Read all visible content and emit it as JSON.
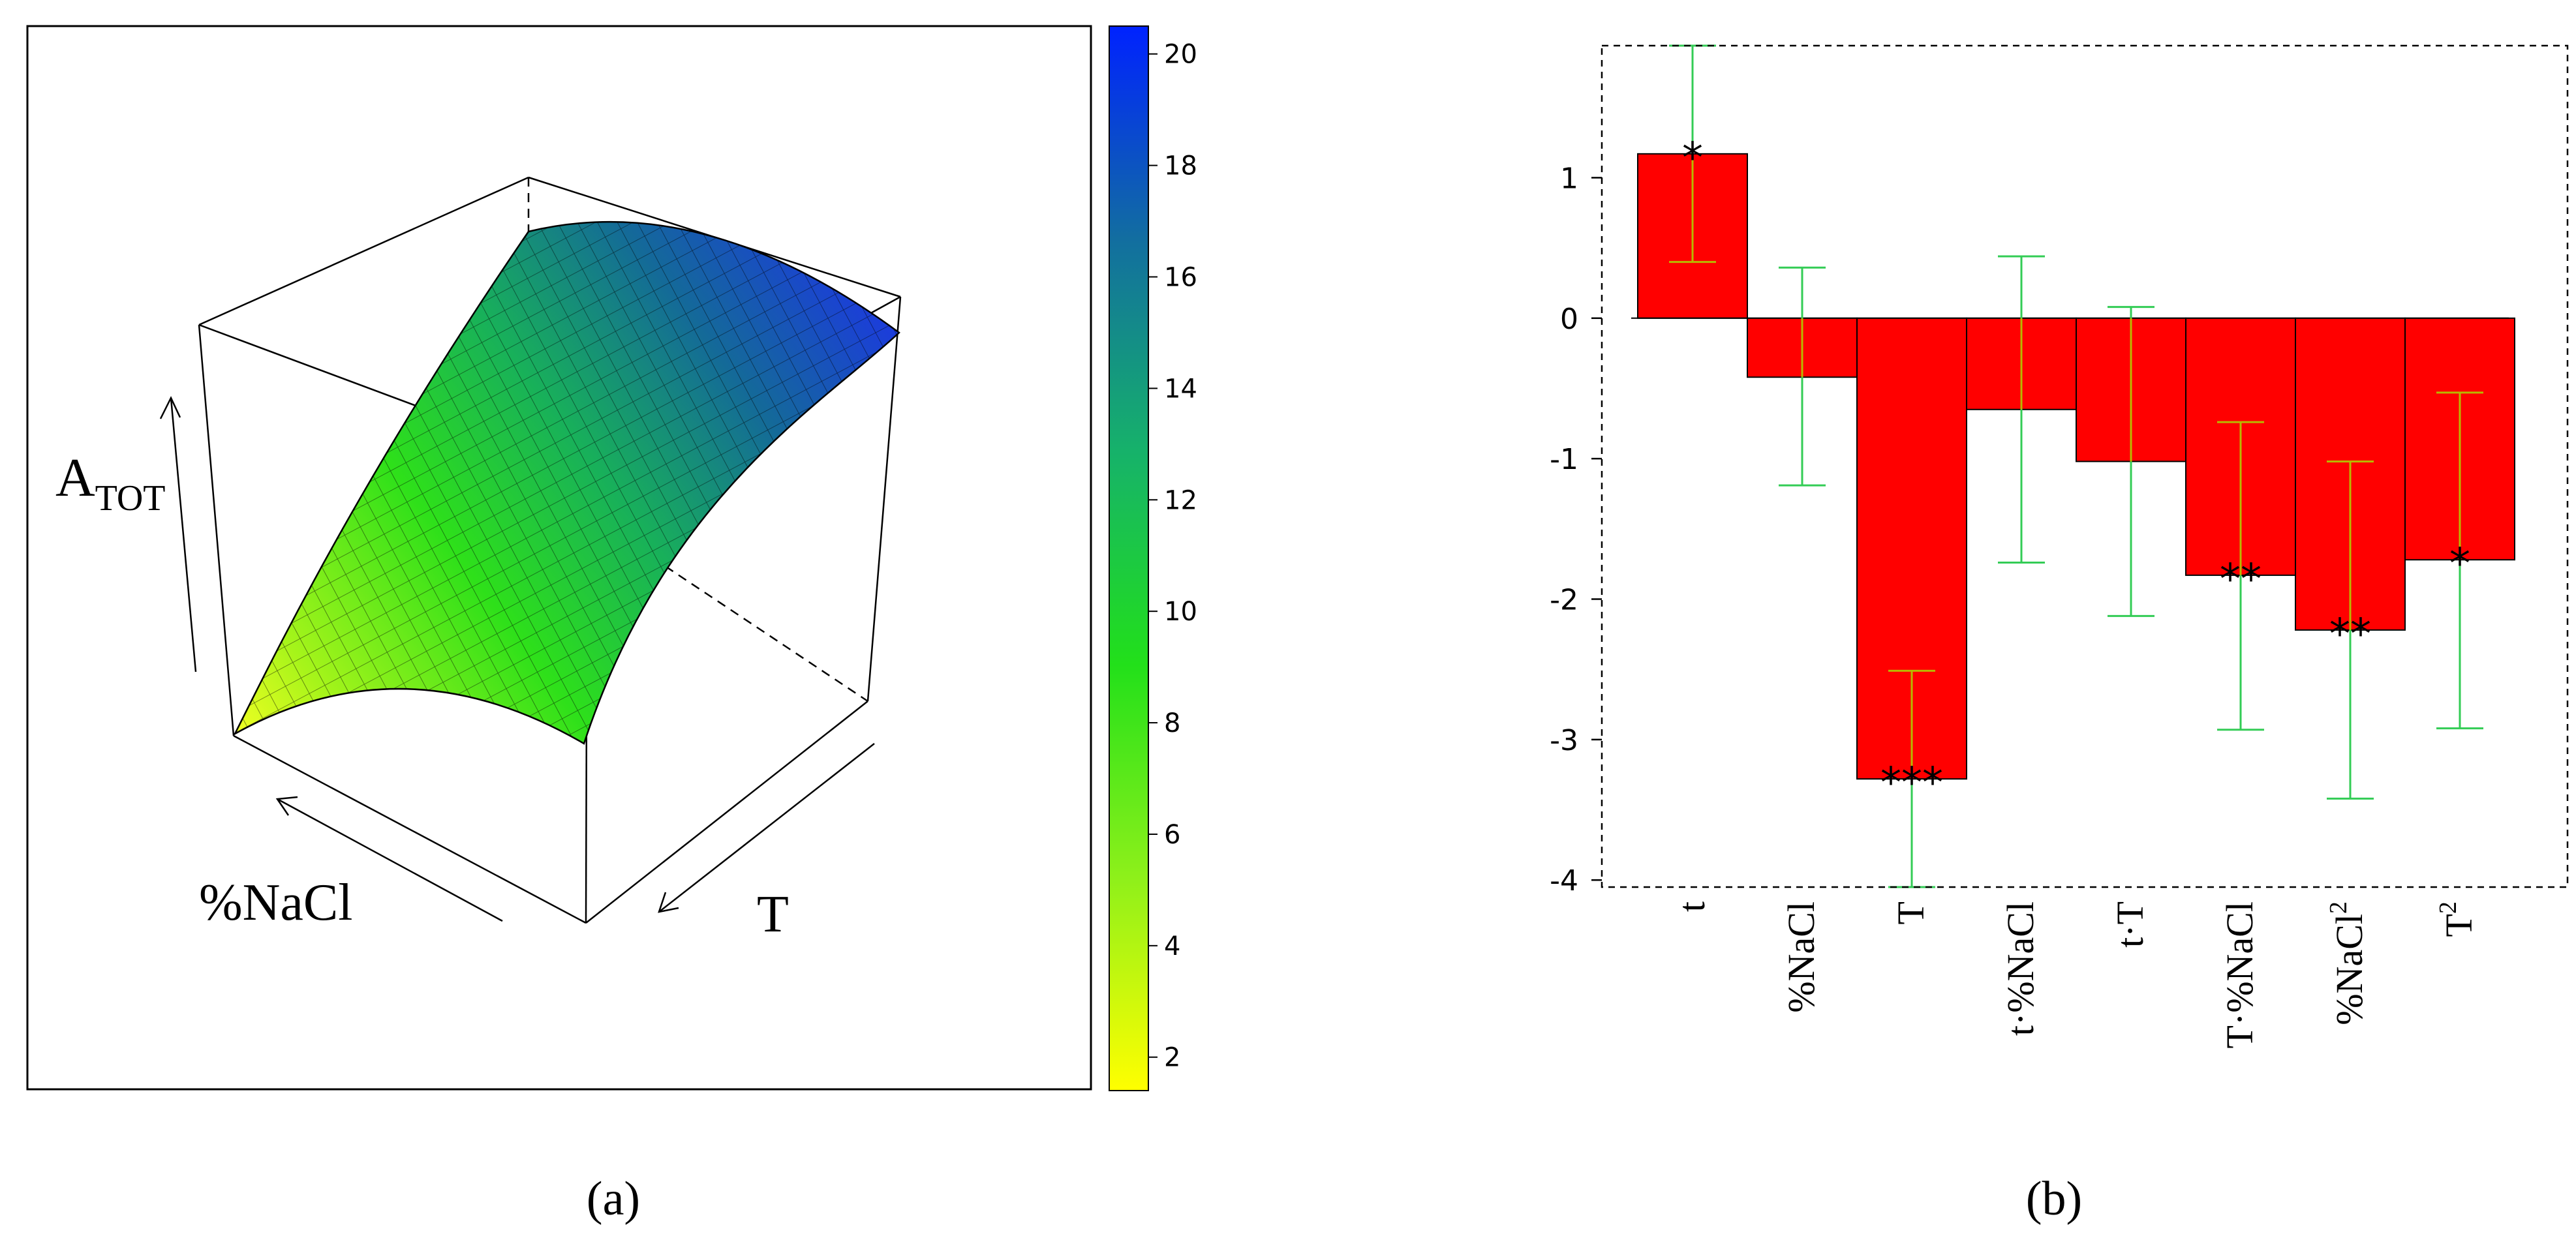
{
  "panel_labels": {
    "a": "(a)",
    "b": "(b)"
  },
  "surface": {
    "z_label": "A",
    "z_label_sub": "TOT",
    "x_label": "%NaCl",
    "y_label": "T"
  },
  "colorbar": {
    "ticks": [
      "20",
      "18",
      "16",
      "14",
      "12",
      "10",
      "8",
      "6",
      "4",
      "2"
    ],
    "min": 1.4,
    "max": 20.5,
    "colors": {
      "low": "#ffff00",
      "mid": "#22e01a",
      "high": "#0022ff"
    }
  },
  "chart_data": [
    {
      "type": "surface",
      "zlabel": "ATOT",
      "xlabel": "%NaCl",
      "ylabel": "T",
      "z_range": [
        1.4,
        20.5
      ],
      "colorbar_ticks": [
        2,
        4,
        6,
        8,
        10,
        12,
        14,
        16,
        18,
        20
      ]
    },
    {
      "type": "bar",
      "categories": [
        "t",
        "%NaCl",
        "T",
        "t·%NaCl",
        "t·T",
        "T·%NaCl",
        "%NaCl",
        "T"
      ],
      "category_superscripts": [
        "",
        "",
        "",
        "",
        "",
        "",
        "2",
        "2"
      ],
      "values": [
        1.17,
        -0.42,
        -3.28,
        -0.65,
        -1.02,
        -1.83,
        -2.22,
        -1.72
      ],
      "ci_low": [
        0.4,
        -1.19,
        -4.05,
        -1.74,
        -2.12,
        -2.93,
        -3.42,
        -2.92
      ],
      "ci_high": [
        1.94,
        0.36,
        -2.51,
        0.44,
        0.08,
        -0.74,
        -1.02,
        -0.53
      ],
      "significance": [
        "*",
        "",
        "***",
        "",
        "",
        "**",
        "**",
        "*"
      ],
      "y_ticks": [
        "1",
        "0",
        "-1",
        "-2",
        "-3",
        "-4"
      ],
      "ylim": [
        -4.05,
        1.94
      ],
      "grid": false,
      "colors": {
        "bar": "#ff0000",
        "error_bar": "#33cc55",
        "error_inner": "#b8b800"
      }
    }
  ]
}
